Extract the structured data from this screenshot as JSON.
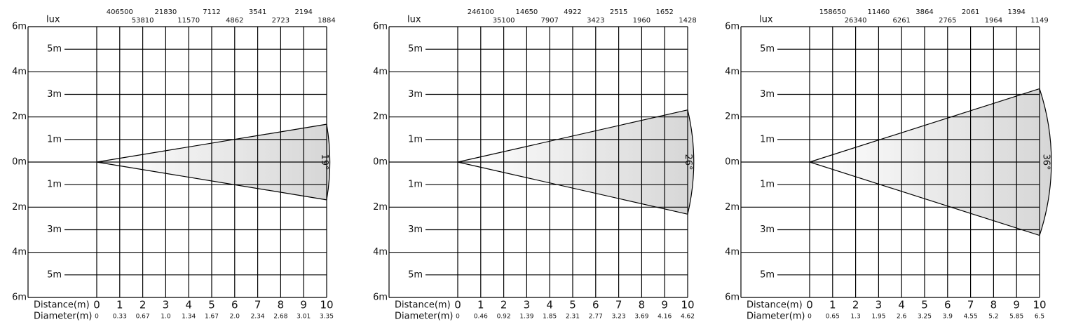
{
  "chart_data": [
    {
      "type": "beam",
      "unit": "lux",
      "x_label": "Distance(m)",
      "diameter_label": "Diameter(m)",
      "beam_angle": {
        "value": 19,
        "label": "19°"
      },
      "xlim": [
        0,
        10
      ],
      "xticks": [
        0,
        1,
        2,
        3,
        4,
        5,
        6,
        7,
        8,
        9,
        10
      ],
      "diameters": [
        0,
        0.33,
        0.67,
        {
          "value": 1,
          "label": "1.0"
        },
        1.34,
        1.67,
        {
          "value": 2,
          "label": "2.0"
        },
        2.34,
        2.68,
        3.01,
        3.35
      ],
      "lux": [
        406500,
        53810,
        21830,
        11570,
        7112,
        4862,
        3541,
        2723,
        2194,
        1884
      ],
      "ylim": [
        -6,
        6
      ],
      "yticks": [
        {
          "value": 6,
          "label": "6m"
        },
        {
          "value": 5,
          "label": "5m"
        },
        {
          "value": 4,
          "label": "4m"
        },
        {
          "value": 3,
          "label": "3m"
        },
        {
          "value": 2,
          "label": "2m"
        },
        {
          "value": 1,
          "label": "1m"
        },
        {
          "value": 0,
          "label": "0m"
        },
        {
          "value": -1,
          "label": "1m"
        },
        {
          "value": -2,
          "label": "2m"
        },
        {
          "value": -3,
          "label": "3m"
        },
        {
          "value": -4,
          "label": "4m"
        },
        {
          "value": -5,
          "label": "5m"
        },
        {
          "value": -6,
          "label": "6m"
        }
      ]
    },
    {
      "type": "beam",
      "unit": "lux",
      "x_label": "Distance(m)",
      "diameter_label": "Diameter(m)",
      "beam_angle": {
        "value": 26,
        "label": "26°"
      },
      "xlim": [
        0,
        10
      ],
      "xticks": [
        0,
        1,
        2,
        3,
        4,
        5,
        6,
        7,
        8,
        9,
        10
      ],
      "diameters": [
        0,
        0.46,
        0.92,
        1.39,
        1.85,
        2.31,
        2.77,
        3.23,
        3.69,
        4.16,
        4.62
      ],
      "lux": [
        246100,
        35100,
        14650,
        7907,
        4922,
        3423,
        2515,
        1960,
        1652,
        1428
      ],
      "ylim": [
        -6,
        6
      ],
      "yticks": [
        {
          "value": 6,
          "label": "6m"
        },
        {
          "value": 5,
          "label": "5m"
        },
        {
          "value": 4,
          "label": "4m"
        },
        {
          "value": 3,
          "label": "3m"
        },
        {
          "value": 2,
          "label": "2m"
        },
        {
          "value": 1,
          "label": "1m"
        },
        {
          "value": 0,
          "label": "0m"
        },
        {
          "value": -1,
          "label": "1m"
        },
        {
          "value": -2,
          "label": "2m"
        },
        {
          "value": -3,
          "label": "3m"
        },
        {
          "value": -4,
          "label": "4m"
        },
        {
          "value": -5,
          "label": "5m"
        },
        {
          "value": -6,
          "label": "6m"
        }
      ]
    },
    {
      "type": "beam",
      "unit": "lux",
      "x_label": "Distance(m)",
      "diameter_label": "Diameter(m)",
      "beam_angle": {
        "value": 36,
        "label": "36°"
      },
      "xlim": [
        0,
        10
      ],
      "xticks": [
        0,
        1,
        2,
        3,
        4,
        5,
        6,
        7,
        8,
        9,
        10
      ],
      "diameters": [
        0,
        0.65,
        1.3,
        1.95,
        2.6,
        3.25,
        3.9,
        4.55,
        5.2,
        5.85,
        6.5
      ],
      "lux": [
        158650,
        26340,
        11460,
        6261,
        3864,
        2765,
        2061,
        1964,
        1394,
        1149
      ],
      "ylim": [
        -6,
        6
      ],
      "yticks": [
        {
          "value": 6,
          "label": "6m"
        },
        {
          "value": 5,
          "label": "5m"
        },
        {
          "value": 4,
          "label": "4m"
        },
        {
          "value": 3,
          "label": "3m"
        },
        {
          "value": 2,
          "label": "2m"
        },
        {
          "value": 1,
          "label": "1m"
        },
        {
          "value": 0,
          "label": "0m"
        },
        {
          "value": -1,
          "label": "1m"
        },
        {
          "value": -2,
          "label": "2m"
        },
        {
          "value": -3,
          "label": "3m"
        },
        {
          "value": -4,
          "label": "4m"
        },
        {
          "value": -5,
          "label": "5m"
        },
        {
          "value": -6,
          "label": "6m"
        }
      ]
    }
  ]
}
